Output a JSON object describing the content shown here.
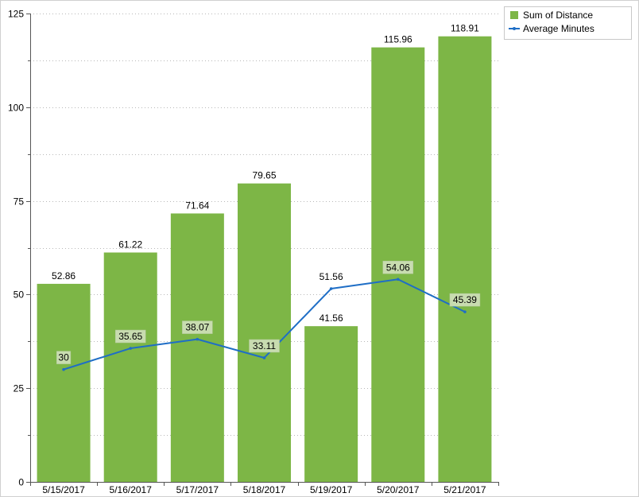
{
  "chart_data": {
    "type": "bar",
    "categories": [
      "5/15/2017",
      "5/16/2017",
      "5/17/2017",
      "5/18/2017",
      "5/19/2017",
      "5/20/2017",
      "5/21/2017"
    ],
    "series": [
      {
        "name": "Sum of Distance",
        "type": "bar",
        "color": "#7db646",
        "values": [
          52.86,
          61.22,
          71.64,
          79.65,
          41.56,
          115.96,
          118.91
        ],
        "labels": [
          "52.86",
          "61.22",
          "71.64",
          "79.65",
          "41.56",
          "115.96",
          "118.91"
        ]
      },
      {
        "name": "Average Minutes",
        "type": "line",
        "color": "#1f6ec6",
        "values": [
          30,
          35.65,
          38.07,
          33.11,
          51.56,
          54.06,
          45.39
        ],
        "labels": [
          "30",
          "35.65",
          "38.07",
          "33.11",
          "51.56",
          "54.06",
          "45.39"
        ]
      }
    ],
    "y_ticks": [
      "0",
      "25",
      "50",
      "75",
      "100",
      "125"
    ],
    "ylim": [
      0,
      125
    ],
    "grid": "horizontal dotted",
    "legend_position": "top-right",
    "label_box_color": "#c8dcb0"
  }
}
